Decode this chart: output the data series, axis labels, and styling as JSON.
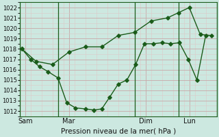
{
  "xlabel": "Pression niveau de la mer( hPa )",
  "ylim": [
    1011.5,
    1022.5
  ],
  "yticks": [
    1012,
    1013,
    1014,
    1015,
    1016,
    1017,
    1018,
    1019,
    1020,
    1021,
    1022
  ],
  "bg_color": "#cce8e0",
  "grid_major_color": "#c8a8a8",
  "grid_minor_color": "#ddc8c8",
  "line_color": "#1a5c1a",
  "xtick_labels": [
    "Sam",
    "Mar",
    "Dim",
    "Lun"
  ],
  "xtick_positions": [
    0.5,
    4.5,
    11.5,
    15.5
  ],
  "vline_positions": [
    0,
    3.5,
    10.5,
    14.5,
    18
  ],
  "xlim": [
    0,
    18
  ],
  "line1_x": [
    0.2,
    1.0,
    1.8,
    2.6,
    3.5,
    4.3,
    5.1,
    6.0,
    6.8,
    7.5,
    8.2,
    9.0,
    9.8,
    10.6,
    11.4,
    12.2,
    13.0,
    13.8,
    14.6,
    15.4,
    16.2,
    17.0
  ],
  "line1_y": [
    1018.0,
    1017.0,
    1016.3,
    1015.8,
    1015.2,
    1012.8,
    1012.3,
    1012.2,
    1012.1,
    1012.2,
    1013.3,
    1014.6,
    1015.0,
    1016.5,
    1018.5,
    1018.5,
    1018.6,
    1018.5,
    1018.6,
    1017.0,
    1015.0,
    1019.3
  ],
  "line2_x": [
    0.2,
    1.5,
    3.0,
    4.5,
    6.0,
    7.5,
    9.0,
    10.5,
    12.0,
    13.5,
    14.5,
    15.5,
    16.5,
    17.5
  ],
  "line2_y": [
    1018.0,
    1016.8,
    1016.5,
    1017.7,
    1018.2,
    1018.2,
    1019.3,
    1019.6,
    1020.7,
    1021.0,
    1021.5,
    1022.0,
    1019.4,
    1019.3
  ]
}
